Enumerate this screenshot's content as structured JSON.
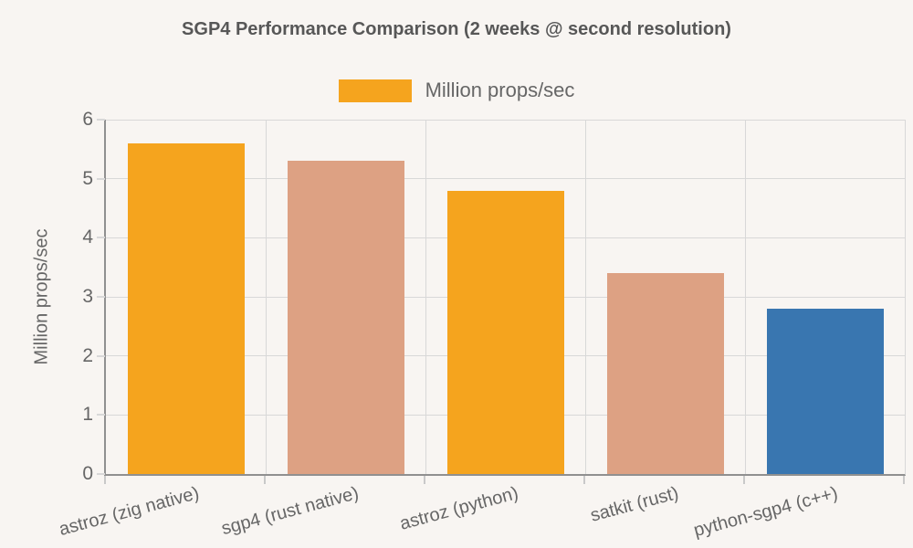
{
  "chart_data": {
    "type": "bar",
    "title": "SGP4 Performance Comparison (2 weeks @ second resolution)",
    "xlabel": "",
    "ylabel": "Million props/sec",
    "categories": [
      "astroz (zig native)",
      "sgp4 (rust native)",
      "astroz (python)",
      "satkit (rust)",
      "python-sgp4 (c++)"
    ],
    "values": [
      5.6,
      5.3,
      4.8,
      3.4,
      2.8
    ],
    "bar_colors": [
      "#F5A41E",
      "#DDA183",
      "#F5A41E",
      "#DDA183",
      "#3976B0"
    ],
    "ylim": [
      0,
      6
    ],
    "yticks": [
      0,
      1,
      2,
      3,
      4,
      5,
      6
    ],
    "grid": true,
    "legend": {
      "label": "Million props/sec",
      "position": "top",
      "swatch_color": "#F5A41E"
    },
    "colors": {
      "background": "#F8F5F2",
      "axis": "#909090",
      "gridline": "#D8D8D8",
      "text": "#666666",
      "title": "#575757"
    }
  }
}
